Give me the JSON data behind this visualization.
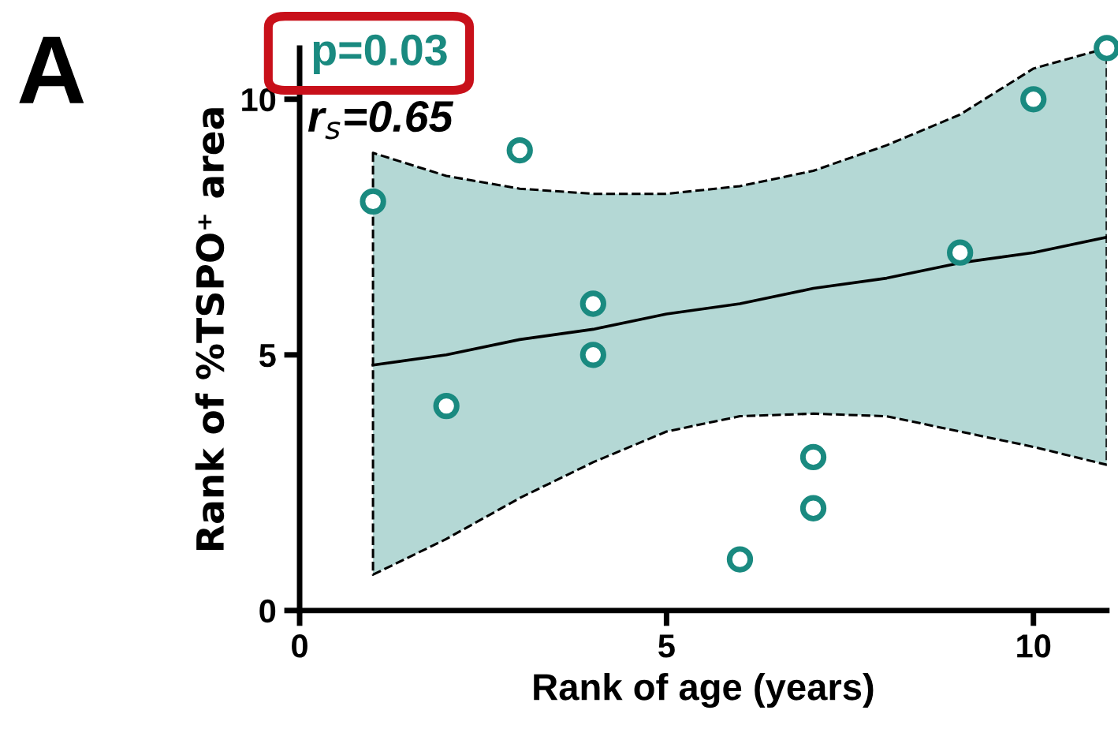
{
  "chart_data": {
    "type": "scatter",
    "xlabel": "Rank of age (years)",
    "ylabel": "Rank of %TSPO⁺ area",
    "annotations": [
      "A",
      "p=0.03",
      "r$_{s}$=0.65"
    ],
    "xlim": [
      0,
      11
    ],
    "ylim": [
      0,
      11
    ],
    "xticks": [
      0,
      5,
      10
    ],
    "yticks": [
      0,
      5,
      10
    ],
    "grid": false,
    "legend": false,
    "series": [
      {
        "color": "#1a8a80",
        "marker": "circle",
        "x": [
          1,
          2,
          3,
          4,
          4,
          6,
          7,
          7,
          9,
          10,
          11
        ],
        "values": [
          8,
          4,
          9,
          6,
          5,
          1,
          3,
          2,
          7,
          10,
          11
        ]
      },
      {
        "type": "line",
        "color": "#000000",
        "line_style": "solid",
        "x": [
          1,
          2,
          3,
          4,
          5,
          6,
          7,
          8,
          9,
          10,
          11
        ],
        "values": [
          4.8,
          5.0,
          5.3,
          5.5,
          5.8,
          6.0,
          6.3,
          6.5,
          6.8,
          7.0,
          7.3
        ],
        "lower": [
          0.7,
          1.4,
          2.2,
          2.9,
          3.5,
          3.8,
          3.85,
          3.8,
          3.5,
          3.2,
          2.85
        ],
        "upper": [
          8.95,
          8.5,
          8.25,
          8.15,
          8.15,
          8.3,
          8.6,
          9.1,
          9.7,
          10.6,
          11
        ]
      }
    ]
  }
}
